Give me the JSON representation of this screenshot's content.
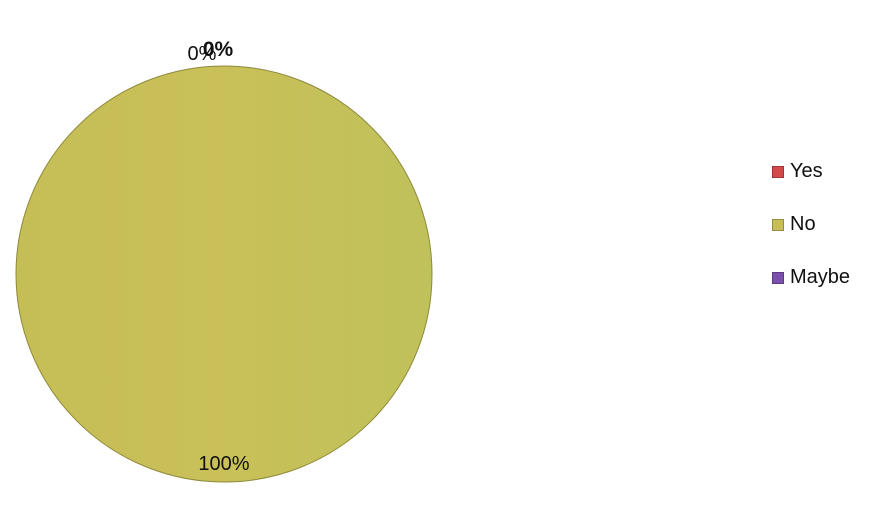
{
  "chart_data": {
    "type": "pie",
    "categories": [
      "Yes",
      "No",
      "Maybe"
    ],
    "values": [
      0,
      100,
      0
    ],
    "data_labels": [
      "0%",
      "100%",
      "0%"
    ],
    "colors": [
      "#d44a4a",
      "#c7be55",
      "#7b4fae"
    ],
    "title": "",
    "legend": "right"
  }
}
